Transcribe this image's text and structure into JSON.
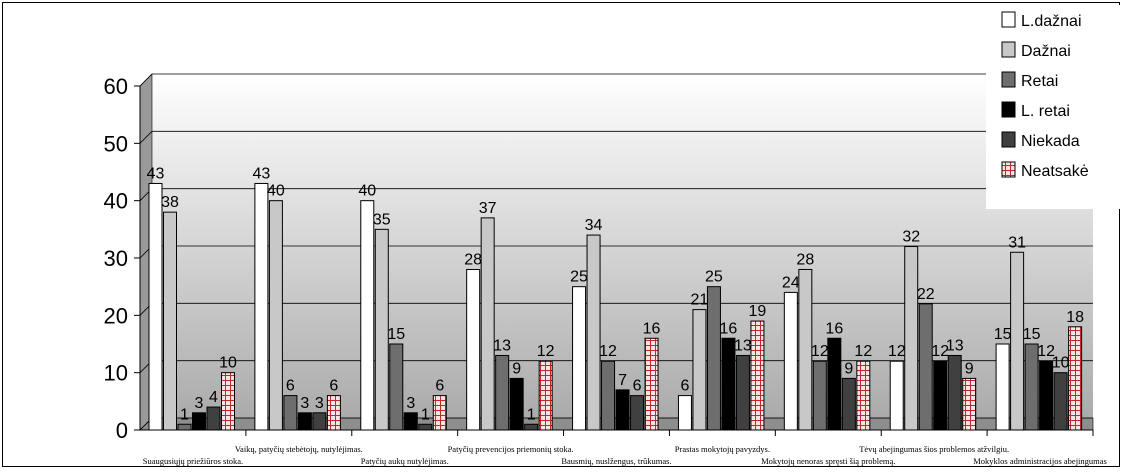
{
  "chart_data": {
    "type": "bar",
    "categories": [
      "Suaugusiųjų priežiūros stoka.",
      "Vaikų, patyčių stebėtojų, nutylėjimas.",
      "Patyčių aukų nutylėjimas.",
      "Patyčių prevencijos priemonių stoka.",
      "Bausmių, nuslžengus, trūkumas.",
      "Prastas mokytojų pavyzdys.",
      "Mokytojų nenoras spręsti šią problemą.",
      "Tėvų abejingumas šios problemos atžvilgiu.",
      "Mokyklos administracijos abejingumas"
    ],
    "series": [
      {
        "name": "L.dažnai",
        "values": [
          43,
          43,
          40,
          28,
          25,
          6,
          24,
          12,
          15
        ]
      },
      {
        "name": "Dažnai",
        "values": [
          38,
          40,
          35,
          37,
          34,
          21,
          28,
          32,
          31
        ]
      },
      {
        "name": "Retai",
        "values": [
          1,
          6,
          15,
          13,
          12,
          25,
          12,
          22,
          15
        ]
      },
      {
        "name": "L. retai",
        "values": [
          3,
          3,
          3,
          9,
          7,
          16,
          16,
          12,
          12
        ]
      },
      {
        "name": "Niekada",
        "values": [
          4,
          3,
          1,
          1,
          6,
          13,
          9,
          13,
          10
        ]
      },
      {
        "name": "Neatsakė",
        "values": [
          10,
          6,
          6,
          12,
          16,
          19,
          12,
          9,
          18
        ]
      }
    ],
    "ylim": [
      0,
      60
    ],
    "yticks": [
      0,
      10,
      20,
      30,
      40,
      50,
      60
    ],
    "grid": true,
    "legend": "top-right",
    "colors": {
      "L.dažnai": "#ffffff",
      "Dažnai": "#c8c8c8",
      "Retai": "#6e6e6e",
      "L. retai": "#000000",
      "Niekada": "#404040",
      "Neatsakė": "#e8b8b8"
    }
  }
}
